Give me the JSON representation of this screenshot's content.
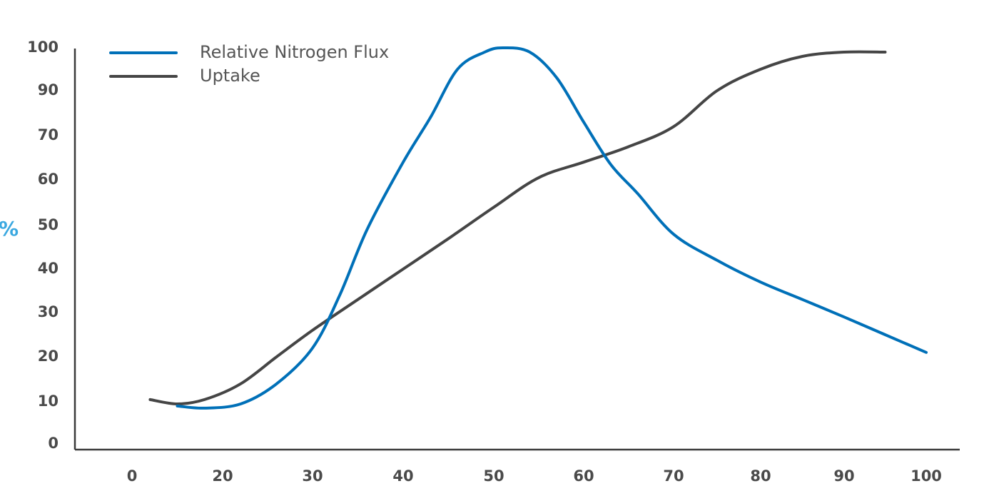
{
  "chart_data": {
    "type": "line",
    "ylabel": "%",
    "xlabel": "",
    "title": "",
    "x_ticks": [
      "0",
      "20",
      "30",
      "40",
      "50",
      "60",
      "70",
      "80",
      "90",
      "100"
    ],
    "y_ticks": [
      "0",
      "10",
      "20",
      "30",
      "40",
      "50",
      "60",
      "70",
      "90",
      "100"
    ],
    "legend_position": "top-left",
    "grid": false,
    "series": [
      {
        "name": "Relative Nitrogen Flux",
        "color": "#0070b8",
        "x": [
          15,
          18,
          22,
          26,
          30,
          33,
          36,
          40,
          43,
          46,
          49,
          51,
          54,
          57,
          60,
          63,
          66,
          70,
          75,
          80,
          85,
          90,
          95,
          100
        ],
        "y": [
          9,
          8.5,
          9.5,
          14,
          22,
          34,
          49,
          68,
          84,
          95,
          99,
          100,
          99,
          93,
          83,
          67,
          57,
          48,
          42,
          37,
          33,
          29,
          25,
          21
        ]
      },
      {
        "name": "Uptake",
        "color": "#454545",
        "x": [
          12,
          15,
          18,
          22,
          26,
          30,
          35,
          40,
          45,
          50,
          55,
          60,
          65,
          70,
          75,
          80,
          85,
          90,
          95
        ],
        "y": [
          10.5,
          9.5,
          10.5,
          14,
          20,
          26,
          33,
          40,
          47,
          54,
          61,
          68,
          75,
          82,
          90,
          95,
          98,
          99,
          99
        ]
      }
    ]
  }
}
